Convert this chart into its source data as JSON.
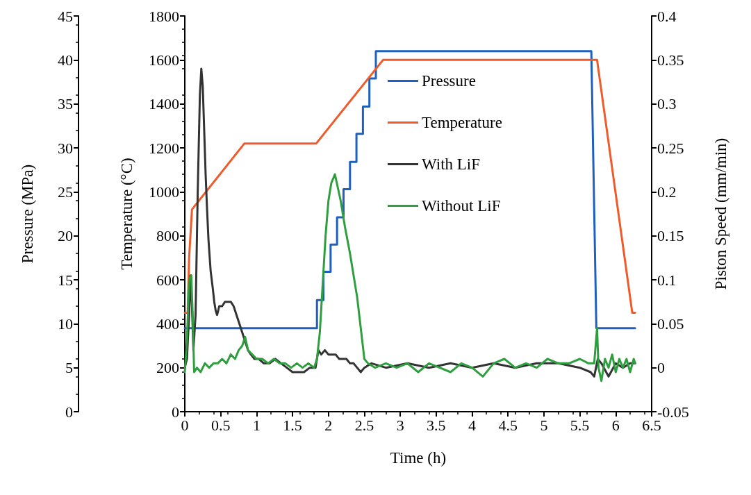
{
  "chart_data": {
    "type": "line",
    "xlabel": "Time (h)",
    "ylabel": "Pressure (MPa)",
    "y2label": "Temperature (°C)",
    "y3label": "Piston Speed (mm/min)",
    "xlim": [
      0,
      6.5
    ],
    "xticks": [
      0,
      0.5,
      1,
      1.5,
      2,
      2.5,
      3,
      3.5,
      4,
      4.5,
      5,
      5.5,
      6,
      6.5
    ],
    "ylim": [
      0,
      45
    ],
    "yticks": [
      0,
      5,
      10,
      15,
      20,
      25,
      30,
      35,
      40,
      45
    ],
    "y2lim": [
      0,
      1800
    ],
    "y2ticks": [
      0,
      200,
      400,
      600,
      800,
      1000,
      1200,
      1400,
      1600,
      1800
    ],
    "y3lim": [
      -0.05,
      0.4
    ],
    "y3ticks": [
      -0.05,
      0,
      0.05,
      0.1,
      0.15,
      0.2,
      0.25,
      0.3,
      0.35,
      0.4
    ],
    "grid": false,
    "legend": "top",
    "marker": "none",
    "line_style": "solid",
    "series": [
      {
        "name": "Pressure",
        "color": "#1f5fbf",
        "axis": "y",
        "x": [
          0,
          1.84,
          1.84,
          1.93,
          1.93,
          2.03,
          2.03,
          2.12,
          2.12,
          2.21,
          2.21,
          2.3,
          2.3,
          2.39,
          2.39,
          2.48,
          2.48,
          2.57,
          2.57,
          2.66,
          2.66,
          5.66,
          5.73,
          6.27
        ],
        "values": [
          9.5,
          9.5,
          12.7,
          12.7,
          15.9,
          15.9,
          19,
          19,
          22.1,
          22.1,
          25.3,
          25.3,
          28.4,
          28.4,
          31.6,
          31.6,
          34.7,
          34.7,
          37.9,
          37.9,
          41,
          41,
          9.5,
          9.5
        ]
      },
      {
        "name": "Temperature",
        "color": "#f05a28",
        "axis": "y2",
        "x": [
          0,
          0.04,
          0.06,
          0.1,
          0.83,
          1.83,
          2.76,
          5.74,
          6.23,
          6.27
        ],
        "values": [
          450,
          450,
          700,
          920,
          1220,
          1220,
          1600,
          1600,
          450,
          450
        ]
      },
      {
        "name": "With LiF",
        "color": "#333333",
        "axis": "y3",
        "x": [
          0,
          0.03,
          0.06,
          0.08,
          0.1,
          0.12,
          0.15,
          0.18,
          0.21,
          0.23,
          0.25,
          0.27,
          0.29,
          0.31,
          0.33,
          0.36,
          0.39,
          0.41,
          0.43,
          0.45,
          0.48,
          0.52,
          0.56,
          0.6,
          0.64,
          0.68,
          0.72,
          0.76,
          0.8,
          0.84,
          0.88,
          0.92,
          0.97,
          1.03,
          1.1,
          1.18,
          1.26,
          1.34,
          1.42,
          1.5,
          1.58,
          1.66,
          1.74,
          1.82,
          1.86,
          1.9,
          1.95,
          2.0,
          2.05,
          2.1,
          2.15,
          2.2,
          2.25,
          2.3,
          2.35,
          2.4,
          2.45,
          2.5,
          2.6,
          2.8,
          3.1,
          3.4,
          3.7,
          4.0,
          4.3,
          4.6,
          4.9,
          5.2,
          5.5,
          5.65,
          5.7,
          5.75,
          5.8,
          5.9,
          6.0,
          6.1,
          6.2,
          6.27
        ],
        "values": [
          0,
          0.01,
          0.06,
          0.105,
          0.07,
          0.02,
          0.06,
          0.2,
          0.31,
          0.34,
          0.32,
          0.27,
          0.22,
          0.18,
          0.145,
          0.11,
          0.09,
          0.075,
          0.065,
          0.06,
          0.07,
          0.07,
          0.075,
          0.075,
          0.075,
          0.07,
          0.06,
          0.05,
          0.04,
          0.03,
          0.02,
          0.015,
          0.01,
          0.01,
          0.005,
          0.005,
          0.01,
          0.005,
          0,
          -0.005,
          -0.005,
          -0.005,
          0,
          0,
          0.02,
          0.015,
          0.02,
          0.015,
          0.015,
          0.015,
          0.01,
          0.01,
          0.01,
          0.005,
          0.005,
          0,
          -0.005,
          0,
          0.005,
          0,
          0.005,
          0,
          0.005,
          0,
          0.005,
          0,
          0.005,
          0.005,
          0,
          -0.005,
          -0.01,
          0.01,
          0.005,
          -0.01,
          0.005,
          0,
          0.005,
          0.005
        ]
      },
      {
        "name": "Without LiF",
        "color": "#2e9e3e",
        "axis": "y3",
        "x": [
          0,
          0.03,
          0.06,
          0.09,
          0.11,
          0.13,
          0.17,
          0.22,
          0.28,
          0.34,
          0.4,
          0.46,
          0.52,
          0.58,
          0.64,
          0.7,
          0.75,
          0.8,
          0.84,
          0.88,
          0.94,
          1.0,
          1.08,
          1.16,
          1.24,
          1.32,
          1.4,
          1.48,
          1.56,
          1.64,
          1.72,
          1.8,
          1.84,
          1.88,
          1.92,
          1.96,
          2.0,
          2.04,
          2.09,
          2.13,
          2.17,
          2.23,
          2.3,
          2.35,
          2.4,
          2.45,
          2.5,
          2.55,
          2.65,
          2.8,
          2.95,
          3.1,
          3.25,
          3.4,
          3.55,
          3.7,
          3.85,
          4.0,
          4.15,
          4.3,
          4.45,
          4.6,
          4.75,
          4.9,
          5.05,
          5.2,
          5.35,
          5.5,
          5.62,
          5.7,
          5.74,
          5.76,
          5.8,
          5.85,
          5.9,
          5.95,
          6.0,
          6.05,
          6.1,
          6.15,
          6.2,
          6.25,
          6.27
        ],
        "values": [
          -0.005,
          0.03,
          0.1,
          0.105,
          0.06,
          -0.005,
          0,
          -0.005,
          0.005,
          0,
          0.005,
          0.005,
          0.01,
          0.005,
          0.015,
          0.01,
          0.02,
          0.025,
          0.035,
          0.02,
          0.015,
          0.01,
          0.01,
          0.005,
          0.01,
          0.005,
          0.005,
          0,
          0.005,
          0,
          0.005,
          0,
          0.01,
          0.04,
          0.095,
          0.15,
          0.19,
          0.21,
          0.22,
          0.205,
          0.19,
          0.16,
          0.13,
          0.105,
          0.08,
          0.045,
          0.01,
          0.005,
          0,
          0.005,
          0,
          0.005,
          -0.005,
          0.005,
          0,
          -0.005,
          0.005,
          0,
          -0.01,
          0.005,
          0.01,
          0,
          0.005,
          0,
          0.01,
          0.005,
          0.005,
          0.01,
          0.005,
          0.005,
          0.045,
          0,
          -0.015,
          0.01,
          0,
          0.015,
          -0.005,
          0.01,
          0,
          0.01,
          -0.005,
          0.01,
          0.005
        ]
      }
    ]
  }
}
